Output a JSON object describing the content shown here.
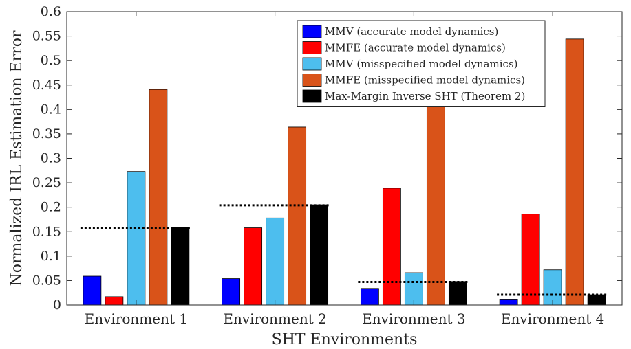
{
  "chart_data": {
    "type": "bar",
    "title": "",
    "xlabel": "SHT Environments",
    "ylabel": "Normalized IRL Estimation Error",
    "ylim": [
      0,
      0.6
    ],
    "yticks": [
      0,
      0.05,
      0.1,
      0.15,
      0.2,
      0.25,
      0.3,
      0.35,
      0.4,
      0.45,
      0.5,
      0.55,
      0.6
    ],
    "ytick_labels": [
      "0",
      "0.05",
      "0.1",
      "0.15",
      "0.2",
      "0.25",
      "0.3",
      "0.35",
      "0.4",
      "0.45",
      "0.5",
      "0.55",
      "0.6"
    ],
    "categories": [
      "Environment 1",
      "Environment 2",
      "Environment 3",
      "Environment 4"
    ],
    "series": [
      {
        "name": "MMV (accurate model dynamics)",
        "color": "#0000ff",
        "values": [
          0.059,
          0.054,
          0.034,
          0.012
        ]
      },
      {
        "name": "MMFE (accurate model dynamics)",
        "color": "#ff0000",
        "values": [
          0.017,
          0.158,
          0.239,
          0.186
        ]
      },
      {
        "name": "MMV (misspecified model dynamics)",
        "color": "#4dbeee",
        "values": [
          0.273,
          0.178,
          0.066,
          0.072
        ]
      },
      {
        "name": "MMFE (misspecified model dynamics)",
        "color": "#d95319",
        "values": [
          0.441,
          0.364,
          0.408,
          0.544
        ]
      },
      {
        "name": "Max-Margin Inverse SHT (Theorem 2)",
        "color": "#000000",
        "values": [
          0.159,
          0.205,
          0.048,
          0.021
        ]
      }
    ],
    "reference_lines": {
      "style": "dotted",
      "color": "#000000",
      "values": [
        0.158,
        0.204,
        0.047,
        0.021
      ]
    },
    "grid": false,
    "legend_position": "top-right"
  }
}
